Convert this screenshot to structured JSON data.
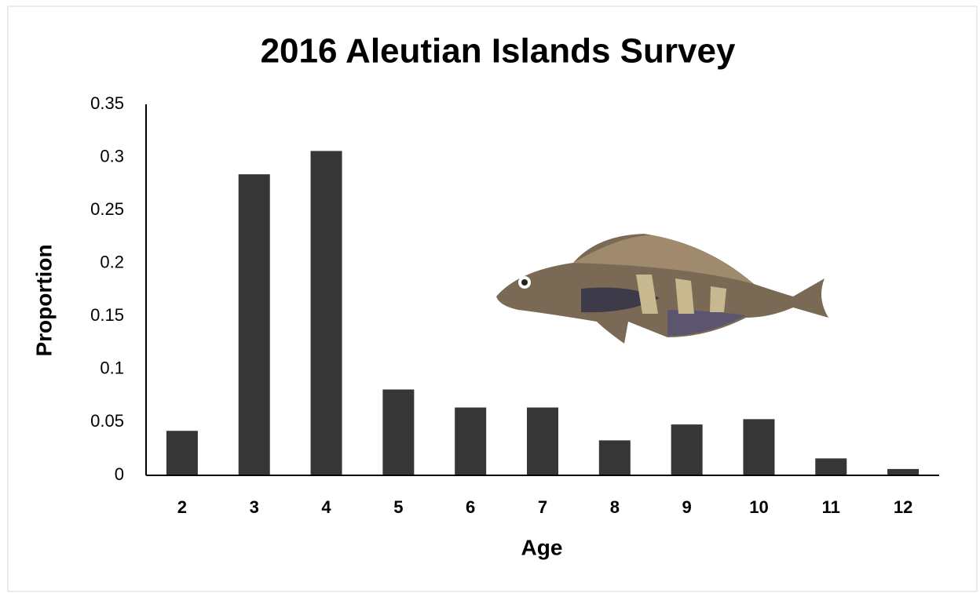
{
  "chart_data": {
    "type": "bar",
    "title": "2016 Aleutian Islands Survey",
    "x_label": "Age",
    "y_label": "Proportion",
    "categories": [
      "2",
      "3",
      "4",
      "5",
      "6",
      "7",
      "8",
      "9",
      "10",
      "11",
      "12"
    ],
    "values": [
      0.042,
      0.284,
      0.306,
      0.081,
      0.064,
      0.064,
      0.033,
      0.048,
      0.053,
      0.016,
      0.006
    ],
    "color": "#363636",
    "ylim": [
      0,
      0.35
    ],
    "yticks": [
      0,
      0.05,
      0.1,
      0.15,
      0.2,
      0.25,
      0.3,
      0.35
    ],
    "grid": false
  }
}
